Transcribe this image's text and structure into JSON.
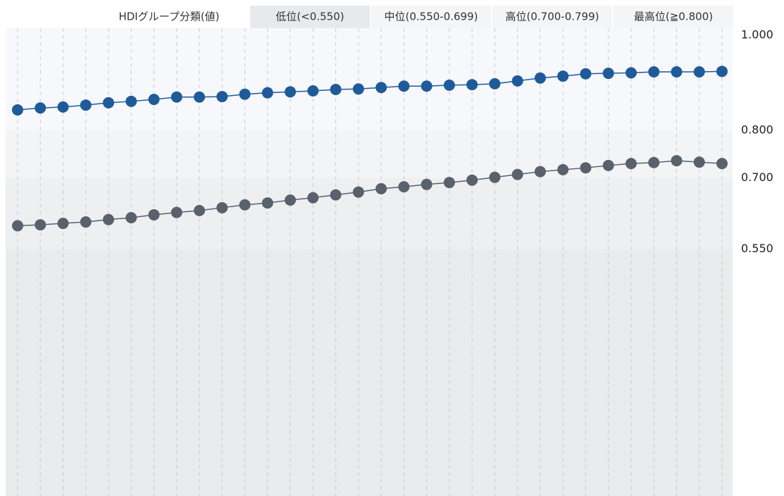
{
  "chart_data": {
    "type": "line",
    "legend_title": "HDIグループ分類(値)",
    "bands": [
      {
        "label": "低位(<0.550)",
        "color": "#e9ebec",
        "legend_color": "#e7eaeb"
      },
      {
        "label": "中位(0.550-0.699)",
        "color": "#eeeff0",
        "legend_color": "#f4f5f6"
      },
      {
        "label": "高位(0.700-0.799)",
        "color": "#f3f4f5",
        "legend_color": "#f4f5f6"
      },
      {
        "label": "最高位(≧0.800)",
        "color": "#f6f8fc",
        "legend_color": "#f4f5f6"
      }
    ],
    "categories": [
      null,
      null,
      null,
      null,
      null,
      null,
      null,
      null,
      null,
      null,
      null,
      null,
      null,
      null,
      null,
      null,
      null,
      null,
      null,
      null,
      null,
      null,
      null,
      null,
      null,
      null,
      null,
      null,
      null,
      null,
      null,
      null
    ],
    "series": [
      {
        "color": "#1f5b99",
        "values": [
          0.843,
          0.847,
          0.849,
          0.853,
          0.858,
          0.861,
          0.865,
          0.87,
          0.87,
          0.871,
          0.876,
          0.879,
          0.881,
          0.883,
          0.886,
          0.887,
          0.89,
          0.893,
          0.893,
          0.895,
          0.896,
          0.898,
          0.904,
          0.91,
          0.914,
          0.919,
          0.92,
          0.921,
          0.923,
          0.923,
          0.923,
          0.924
        ]
      },
      {
        "color": "#59616d",
        "values": [
          0.599,
          0.601,
          0.604,
          0.607,
          0.612,
          0.616,
          0.622,
          0.627,
          0.631,
          0.637,
          0.643,
          0.647,
          0.653,
          0.658,
          0.664,
          0.67,
          0.677,
          0.681,
          0.686,
          0.69,
          0.695,
          0.701,
          0.707,
          0.713,
          0.717,
          0.721,
          0.726,
          0.73,
          0.732,
          0.736,
          0.733,
          0.73
        ]
      }
    ],
    "ylim": [
      0.03,
      1.015
    ],
    "yticks": [
      {
        "value": 0.55,
        "label": "0.550"
      },
      {
        "value": 0.7,
        "label": "0.700"
      },
      {
        "value": 0.8,
        "label": "0.800"
      },
      {
        "value": 1,
        "label": "1.000"
      }
    ],
    "grid": true
  }
}
